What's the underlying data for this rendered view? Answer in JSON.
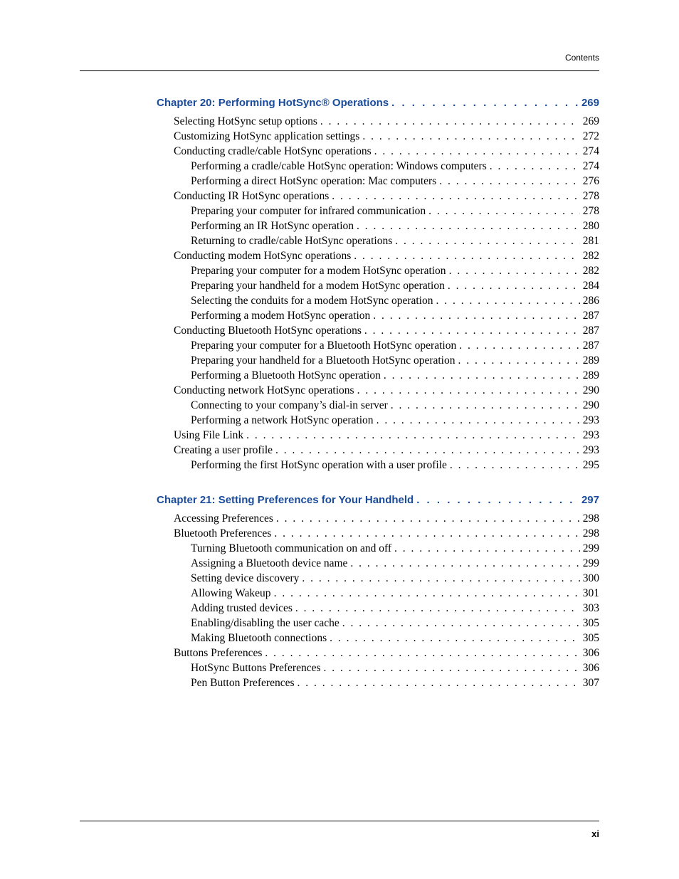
{
  "header": {
    "label": "Contents"
  },
  "footer": {
    "page_number": "xi"
  },
  "colors": {
    "chapter_link": "#1a4b9b",
    "body_text": "#000000",
    "rule": "#000000",
    "background": "#ffffff"
  },
  "typography": {
    "body_font": "Georgia, 'Times New Roman', serif",
    "heading_font": "Arial, Helvetica, sans-serif",
    "body_size_pt": 12,
    "chapter_size_pt": 11.5,
    "chapter_weight": "bold"
  },
  "dot_leader": ". . . . . . . . . . . . . . . . . . . . . . . . . . . . . . . . . . . . . . . . . . . . . . . . . . . . . . . . . . . . . . . . . . . . . . . . . . . . . . . . . . . . . . . . . . . . . . . . . . . . . . . . . . . . . . . . . . . . . . . .",
  "toc": [
    {
      "type": "chapter",
      "label": "Chapter 20:  Performing HotSync® Operations",
      "page": "269"
    },
    {
      "type": "entry",
      "level": 1,
      "label": "Selecting HotSync setup options",
      "page": "269"
    },
    {
      "type": "entry",
      "level": 1,
      "label": "Customizing HotSync application settings",
      "page": "272"
    },
    {
      "type": "entry",
      "level": 1,
      "label": "Conducting cradle/cable HotSync operations",
      "page": "274"
    },
    {
      "type": "entry",
      "level": 2,
      "label": "Performing a cradle/cable HotSync operation: Windows computers",
      "page": "274"
    },
    {
      "type": "entry",
      "level": 2,
      "label": "Performing a direct HotSync operation: Mac computers",
      "page": "276"
    },
    {
      "type": "entry",
      "level": 1,
      "label": "Conducting IR HotSync operations",
      "page": "278"
    },
    {
      "type": "entry",
      "level": 2,
      "label": "Preparing your computer for infrared communication",
      "page": "278"
    },
    {
      "type": "entry",
      "level": 2,
      "label": "Performing an IR HotSync operation",
      "page": "280"
    },
    {
      "type": "entry",
      "level": 2,
      "label": "Returning to cradle/cable HotSync operations",
      "page": "281"
    },
    {
      "type": "entry",
      "level": 1,
      "label": "Conducting modem HotSync operations",
      "page": "282"
    },
    {
      "type": "entry",
      "level": 2,
      "label": "Preparing your computer for a modem HotSync operation",
      "page": "282"
    },
    {
      "type": "entry",
      "level": 2,
      "label": "Preparing your handheld for a modem HotSync operation",
      "page": "284"
    },
    {
      "type": "entry",
      "level": 2,
      "label": "Selecting the conduits for a modem HotSync operation",
      "page": "286"
    },
    {
      "type": "entry",
      "level": 2,
      "label": "Performing a modem HotSync operation",
      "page": "287"
    },
    {
      "type": "entry",
      "level": 1,
      "label": "Conducting Bluetooth HotSync operations",
      "page": "287"
    },
    {
      "type": "entry",
      "level": 2,
      "label": "Preparing your computer for a Bluetooth HotSync operation",
      "page": "287"
    },
    {
      "type": "entry",
      "level": 2,
      "label": "Preparing your handheld for a Bluetooth HotSync operation",
      "page": "289"
    },
    {
      "type": "entry",
      "level": 2,
      "label": "Performing a Bluetooth HotSync operation",
      "page": "289"
    },
    {
      "type": "entry",
      "level": 1,
      "label": "Conducting network HotSync operations",
      "page": "290"
    },
    {
      "type": "entry",
      "level": 2,
      "label": "Connecting to your company’s dial-in server",
      "page": "290"
    },
    {
      "type": "entry",
      "level": 2,
      "label": "Performing a network HotSync operation",
      "page": "293"
    },
    {
      "type": "entry",
      "level": 1,
      "label": "Using File Link",
      "page": "293"
    },
    {
      "type": "entry",
      "level": 1,
      "label": "Creating a user profile",
      "page": "293"
    },
    {
      "type": "entry",
      "level": 2,
      "label": "Performing the first HotSync operation with a user profile",
      "page": "295"
    },
    {
      "type": "chapter",
      "label": "Chapter 21:  Setting Preferences for Your Handheld",
      "page": "297"
    },
    {
      "type": "entry",
      "level": 1,
      "label": "Accessing Preferences",
      "page": "298"
    },
    {
      "type": "entry",
      "level": 1,
      "label": "Bluetooth Preferences",
      "page": "298"
    },
    {
      "type": "entry",
      "level": 2,
      "label": "Turning Bluetooth communication on and off",
      "page": "299"
    },
    {
      "type": "entry",
      "level": 2,
      "label": "Assigning a Bluetooth device name",
      "page": "299"
    },
    {
      "type": "entry",
      "level": 2,
      "label": "Setting device discovery",
      "page": "300"
    },
    {
      "type": "entry",
      "level": 2,
      "label": "Allowing Wakeup",
      "page": "301"
    },
    {
      "type": "entry",
      "level": 2,
      "label": "Adding trusted devices",
      "page": "303"
    },
    {
      "type": "entry",
      "level": 2,
      "label": "Enabling/disabling the user cache",
      "page": "305"
    },
    {
      "type": "entry",
      "level": 2,
      "label": "Making Bluetooth connections",
      "page": "305"
    },
    {
      "type": "entry",
      "level": 1,
      "label": "Buttons Preferences",
      "page": "306"
    },
    {
      "type": "entry",
      "level": 2,
      "label": "HotSync Buttons Preferences",
      "page": "306"
    },
    {
      "type": "entry",
      "level": 2,
      "label": "Pen Button Preferences",
      "page": "307"
    }
  ]
}
